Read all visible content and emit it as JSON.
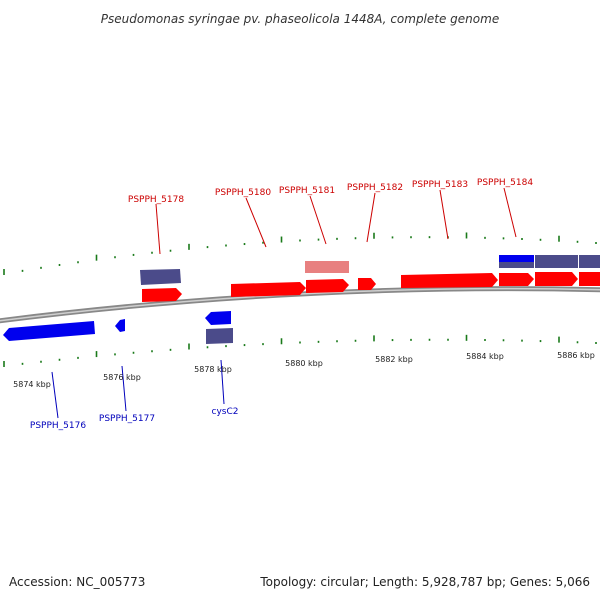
{
  "title": "Pseudomonas syringae pv. phaseolicola 1448A, complete genome",
  "footer": {
    "accession": "Accession: NC_005773",
    "summary": "Topology: circular; Length: 5,928,787 bp; Genes: 5,066"
  },
  "colors": {
    "forward": "#ff0000",
    "forward_light": "#e88080",
    "reverse": "#0000ee",
    "other": "#4b4b8a",
    "backbone": "#888888",
    "tick": "#1a7a1a",
    "label_forward": "#cc0000",
    "label_reverse": "#0000bb"
  },
  "chart_data": {
    "type": "genome-map",
    "axis_unit": "kbp",
    "scale_labels": [
      "5874 kbp",
      "5876 kbp",
      "5878 kbp",
      "5880 kbp",
      "5882 kbp",
      "5884 kbp",
      "5886 kbp"
    ],
    "forward_labels": [
      "PSPPH_5178",
      "PSPPH_5180",
      "PSPPH_5181",
      "PSPPH_5182",
      "PSPPH_5183",
      "PSPPH_5184"
    ],
    "reverse_labels": [
      "PSPPH_5176",
      "PSPPH_5177",
      "cysC2"
    ]
  }
}
